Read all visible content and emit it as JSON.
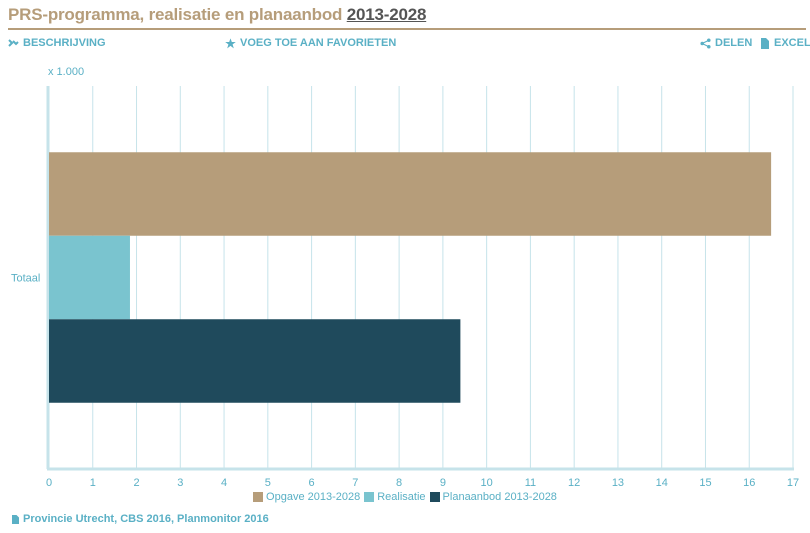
{
  "header": {
    "title_main": "PRS-programma, realisatie en planaanbod",
    "title_period": "2013-2028"
  },
  "toolbar": {
    "description_label": "BESCHRIJVING",
    "favorite_label": "VOEG TOE AAN FAVORIETEN",
    "share_label": "DELEN",
    "excel_label": "EXCEL"
  },
  "source": {
    "text": "Provincie Utrecht, CBS 2016, Planmonitor 2016"
  },
  "colors": {
    "accent": "#5ab0c5",
    "title": "#b69d7a",
    "grid": "#c6e3ea"
  },
  "chart_data": {
    "type": "bar",
    "orientation": "horizontal",
    "unit_label": "x 1.000",
    "categories": [
      "Totaal"
    ],
    "xlim": [
      0,
      17
    ],
    "xticks": [
      0,
      1,
      2,
      3,
      4,
      5,
      6,
      7,
      8,
      9,
      10,
      11,
      12,
      13,
      14,
      15,
      16,
      17
    ],
    "grid": true,
    "legend_position": "bottom",
    "series": [
      {
        "name": "Opgave 2013-2028",
        "values": [
          16.5
        ],
        "color": "#b69d7a"
      },
      {
        "name": "Realisatie",
        "values": [
          1.85
        ],
        "color": "#7ac4cf"
      },
      {
        "name": "Planaanbod 2013-2028",
        "values": [
          9.4
        ],
        "color": "#1f4a5c"
      }
    ]
  }
}
